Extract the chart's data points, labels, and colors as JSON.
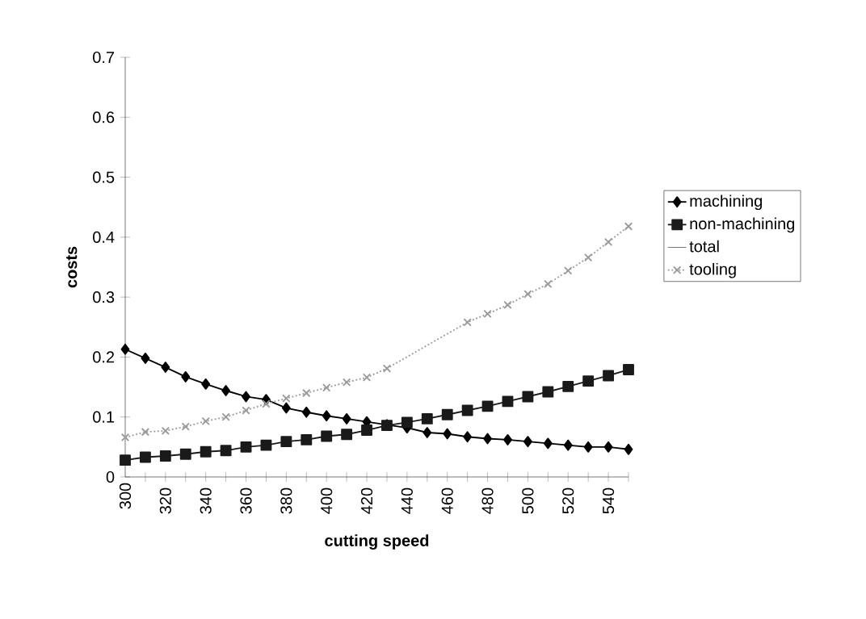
{
  "chart_data": {
    "type": "line",
    "xlabel": "cutting speed",
    "ylabel": "costs",
    "categories": [
      "300",
      null,
      "320",
      null,
      "340",
      null,
      "360",
      null,
      "380",
      null,
      "400",
      null,
      "420",
      null,
      "440",
      null,
      "460",
      null,
      "480",
      null,
      "500",
      null,
      "520",
      null,
      "540",
      null
    ],
    "ylim": [
      0,
      0.7
    ],
    "yticks": [
      0,
      0.1,
      0.2,
      0.3,
      0.4,
      0.5,
      0.6,
      0.7
    ],
    "grid": false,
    "legend": "right",
    "series": [
      {
        "name": "machining",
        "color": "#000000",
        "marker": "diamond",
        "line_style": "solid",
        "values": [
          0.213,
          0.198,
          0.183,
          0.167,
          0.155,
          0.144,
          0.134,
          0.129,
          0.115,
          0.108,
          0.102,
          0.097,
          0.092,
          0.087,
          0.082,
          0.074,
          0.072,
          0.067,
          0.064,
          0.062,
          0.059,
          0.056,
          0.053,
          0.05,
          0.05,
          0.046
        ]
      },
      {
        "name": "non-machining",
        "color": "#1a1a1a",
        "marker": "square",
        "line_style": "solid",
        "values": [
          0.028,
          0.033,
          0.035,
          0.038,
          0.042,
          0.044,
          0.05,
          0.053,
          0.059,
          0.062,
          0.068,
          0.071,
          0.078,
          0.086,
          0.091,
          0.097,
          0.104,
          0.111,
          0.118,
          0.126,
          0.134,
          0.142,
          0.151,
          0.16,
          0.169,
          0.179
        ]
      },
      {
        "name": "total",
        "marker": "none",
        "line_style": "solid",
        "values": [
          null,
          null,
          null,
          null,
          null,
          null,
          null,
          null,
          null,
          null,
          null,
          null,
          null,
          null,
          null,
          null,
          null,
          null,
          null,
          null,
          null,
          null,
          null,
          null,
          null,
          null
        ]
      },
      {
        "name": "tooling",
        "color": "#9a9a9a",
        "marker": "cross",
        "line_style": "dotted",
        "values": [
          0.066,
          0.075,
          0.077,
          0.084,
          0.093,
          0.1,
          0.111,
          0.122,
          0.131,
          0.14,
          0.149,
          0.158,
          0.166,
          0.181,
          null,
          null,
          null,
          0.258,
          0.272,
          0.287,
          0.305,
          0.322,
          0.344,
          0.366,
          0.392,
          0.418
        ]
      }
    ]
  }
}
